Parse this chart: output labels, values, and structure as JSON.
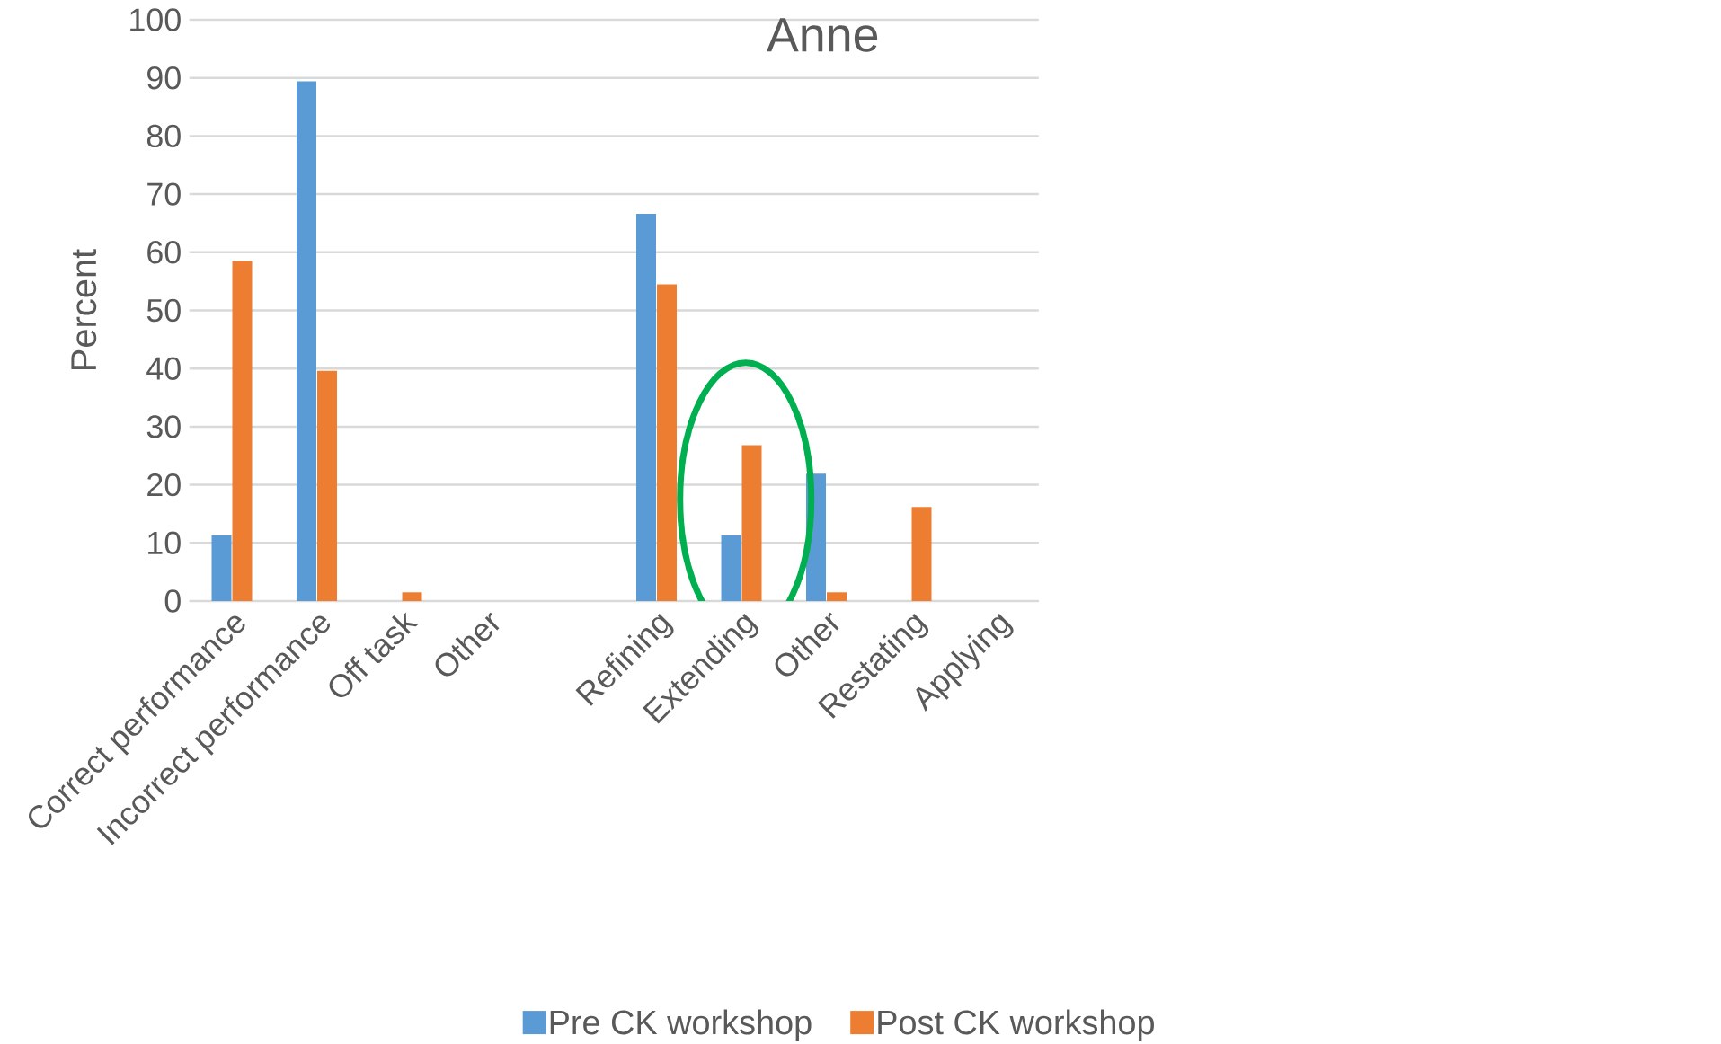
{
  "chart_data": {
    "type": "bar",
    "title": "Anne",
    "ylabel": "Percent",
    "categories": [
      "Correct performance",
      "Incorrect performance",
      "Off task",
      "Other",
      null,
      "Refining",
      "Extending",
      "Other",
      "Restating",
      "Applying"
    ],
    "series": [
      {
        "name": "Pre CK workshop",
        "color": "#5b9bd5",
        "values": [
          11.3,
          89.4,
          0,
          0,
          null,
          66.6,
          11.3,
          21.9,
          0,
          0
        ]
      },
      {
        "name": "Post CK workshop",
        "color": "#ed7d31",
        "values": [
          58.5,
          39.6,
          1.5,
          0,
          null,
          54.5,
          26.8,
          1.5,
          16.2,
          0
        ]
      }
    ],
    "ylim": [
      0,
      100
    ],
    "yticks": [
      0,
      10,
      20,
      30,
      40,
      50,
      60,
      70,
      80,
      90,
      100
    ],
    "grid": "y",
    "legend": "bottom"
  }
}
